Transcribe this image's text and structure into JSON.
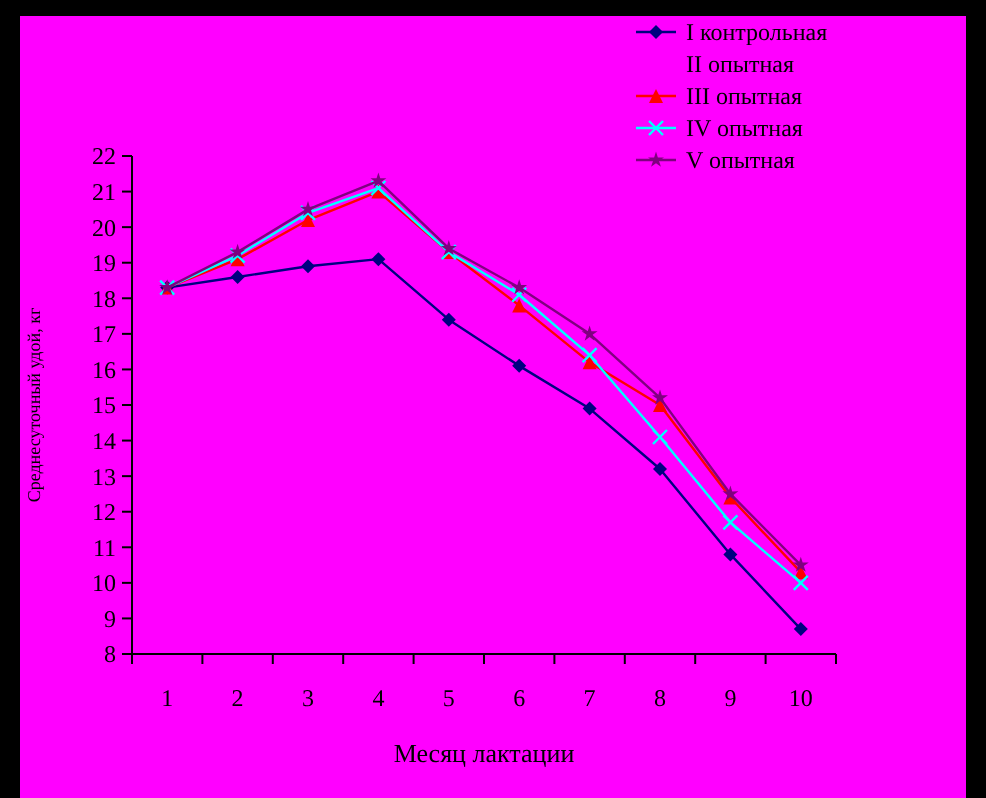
{
  "chart_data": {
    "type": "line",
    "xlabel": "Месяц лактации",
    "ylabel": "Среднесуточный удой, кг",
    "categories": [
      "1",
      "2",
      "3",
      "4",
      "5",
      "6",
      "7",
      "8",
      "9",
      "10"
    ],
    "ylim": [
      8,
      22
    ],
    "yticks": [
      8,
      9,
      10,
      11,
      12,
      13,
      14,
      15,
      16,
      17,
      18,
      19,
      20,
      21,
      22
    ],
    "grid": false,
    "legend": "top right",
    "series": [
      {
        "name": "I контрольная",
        "color": "#000080",
        "marker": "diamond",
        "values": [
          18.3,
          18.6,
          18.9,
          19.1,
          17.4,
          16.1,
          14.9,
          13.2,
          10.8,
          8.7
        ]
      },
      {
        "name": "II опытная",
        "marker": "none",
        "values": [
          null,
          null,
          null,
          null,
          null,
          null,
          null,
          null,
          null,
          null
        ]
      },
      {
        "name": "III опытная",
        "color": "#ff0000",
        "marker": "triangle",
        "values": [
          18.3,
          19.1,
          20.2,
          21.0,
          19.3,
          17.8,
          16.2,
          15.0,
          12.4,
          10.3
        ]
      },
      {
        "name": "IV опытная",
        "color": "#00ffff",
        "marker": "cross",
        "values": [
          18.3,
          19.2,
          20.4,
          21.1,
          19.3,
          18.1,
          16.4,
          14.1,
          11.7,
          10.0
        ]
      },
      {
        "name": "V опытная",
        "color": "#800080",
        "marker": "star",
        "values": [
          18.3,
          19.3,
          20.5,
          21.3,
          19.4,
          18.3,
          17.0,
          15.2,
          12.5,
          10.5
        ]
      }
    ]
  }
}
